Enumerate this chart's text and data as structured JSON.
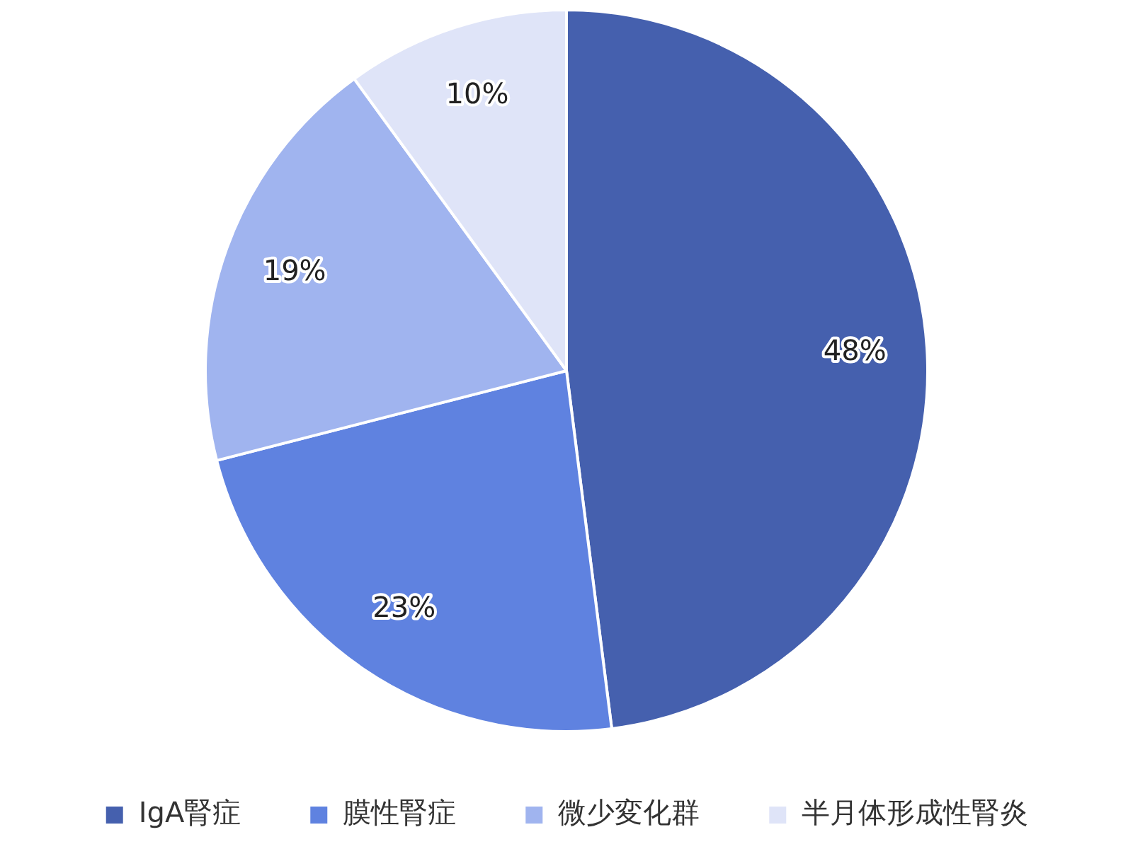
{
  "chart_data": {
    "type": "pie",
    "categories": [
      "IgA腎症",
      "膜性腎症",
      "微少変化群",
      "半月体形成性腎炎"
    ],
    "values": [
      48,
      23,
      19,
      10
    ],
    "colors": [
      "#4560ae",
      "#5f82e0",
      "#a0b4ef",
      "#dfe4f8"
    ],
    "value_labels": [
      "48%",
      "23%",
      "19%",
      "10%"
    ],
    "legend": "bottom"
  }
}
